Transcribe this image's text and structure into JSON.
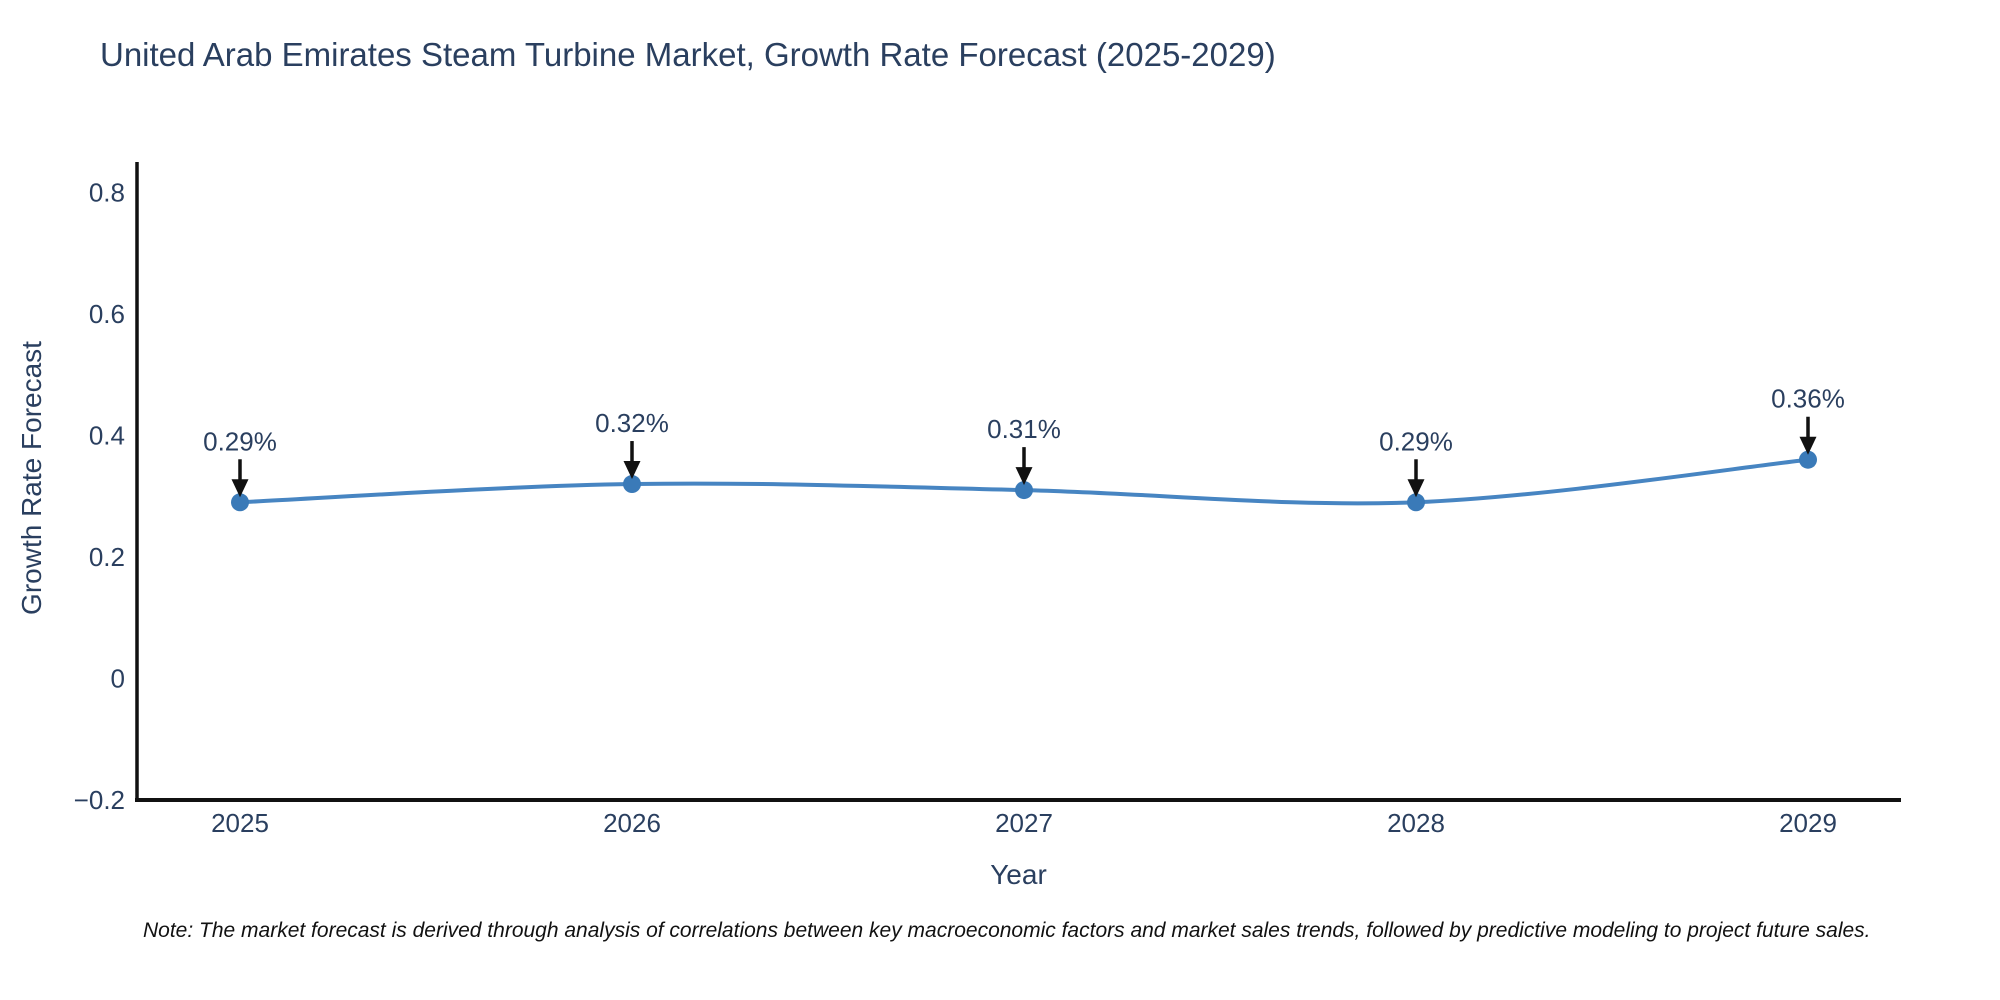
{
  "title": "United Arab Emirates Steam Turbine Market, Growth Rate Forecast (2025-2029)",
  "note": "Note: The market forecast is derived through analysis of correlations between key macroeconomic factors and market sales trends, followed by predictive modeling to project future sales.",
  "chart_data": {
    "type": "line",
    "title": "United Arab Emirates Steam Turbine Market, Growth Rate Forecast (2025-2029)",
    "categories": [
      "2025",
      "2026",
      "2027",
      "2028",
      "2029"
    ],
    "values": [
      0.29,
      0.32,
      0.31,
      0.29,
      0.36
    ],
    "point_labels": [
      "0.29%",
      "0.32%",
      "0.31%",
      "0.29%",
      "0.36%"
    ],
    "xlabel": "Year",
    "ylabel": "Growth Rate Forecast",
    "ylim": [
      -0.2,
      0.85
    ],
    "yticks": [
      0.8,
      0.6,
      0.4,
      0.2,
      0,
      -0.2
    ],
    "ytick_labels": [
      "0.8",
      "0.6",
      "0.4",
      "0.2",
      "0",
      "−0.2"
    ],
    "line_shape": "spline",
    "grid": false,
    "legend": "none",
    "colors": {
      "line": "#4785c2",
      "marker": "#3a7ab8",
      "axis": "#111111",
      "text": "#2a3f5f",
      "arrow": "#111111"
    }
  }
}
